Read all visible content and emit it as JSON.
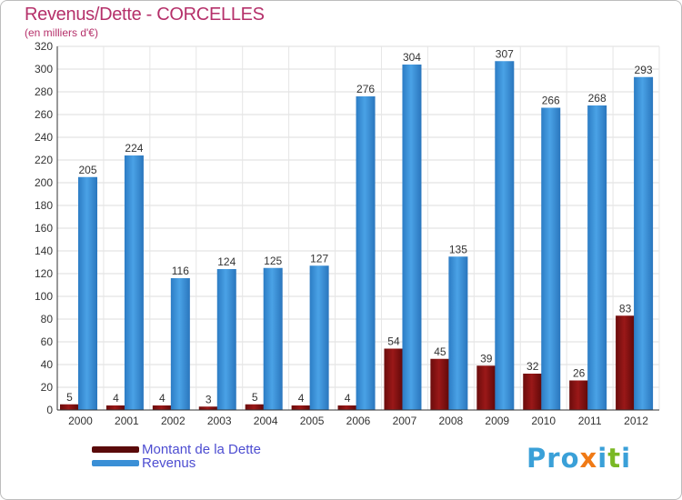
{
  "title": "Revenus/Dette - CORCELLES",
  "subtitle": "(en milliers d'€)",
  "chart_data": {
    "type": "bar",
    "categories": [
      "2000",
      "2001",
      "2002",
      "2003",
      "2004",
      "2005",
      "2006",
      "2007",
      "2008",
      "2009",
      "2010",
      "2011",
      "2012"
    ],
    "series": [
      {
        "name": "Montant de la Dette",
        "values": [
          5,
          4,
          4,
          3,
          5,
          4,
          4,
          54,
          45,
          39,
          32,
          26,
          83
        ],
        "color": "#8b1414"
      },
      {
        "name": "Revenus",
        "values": [
          205,
          224,
          116,
          124,
          125,
          127,
          276,
          304,
          135,
          307,
          266,
          268,
          293
        ],
        "color": "#3a8fd6"
      }
    ],
    "title": "Revenus/Dette - CORCELLES",
    "ylim": [
      0,
      320
    ],
    "yticks": [
      0,
      20,
      40,
      60,
      80,
      100,
      120,
      140,
      160,
      180,
      200,
      220,
      240,
      260,
      280,
      300,
      320
    ],
    "grid": true,
    "legend": "bottom-left"
  },
  "legend": {
    "items": [
      {
        "label": "Montant de la Dette",
        "color": "#5a0a0a"
      },
      {
        "label": "Revenus",
        "color": "#3a8fd6"
      }
    ]
  },
  "logo": {
    "letters": [
      {
        "ch": "P",
        "color": "#3aa0d8"
      },
      {
        "ch": "r",
        "color": "#3aa0d8"
      },
      {
        "ch": "o",
        "color": "#3aa0d8"
      },
      {
        "ch": "x",
        "color": "#f07a16"
      },
      {
        "ch": "i",
        "color": "#3aa0d8"
      },
      {
        "ch": "t",
        "color": "#7ab824"
      },
      {
        "ch": "i",
        "color": "#3aa0d8"
      }
    ]
  }
}
